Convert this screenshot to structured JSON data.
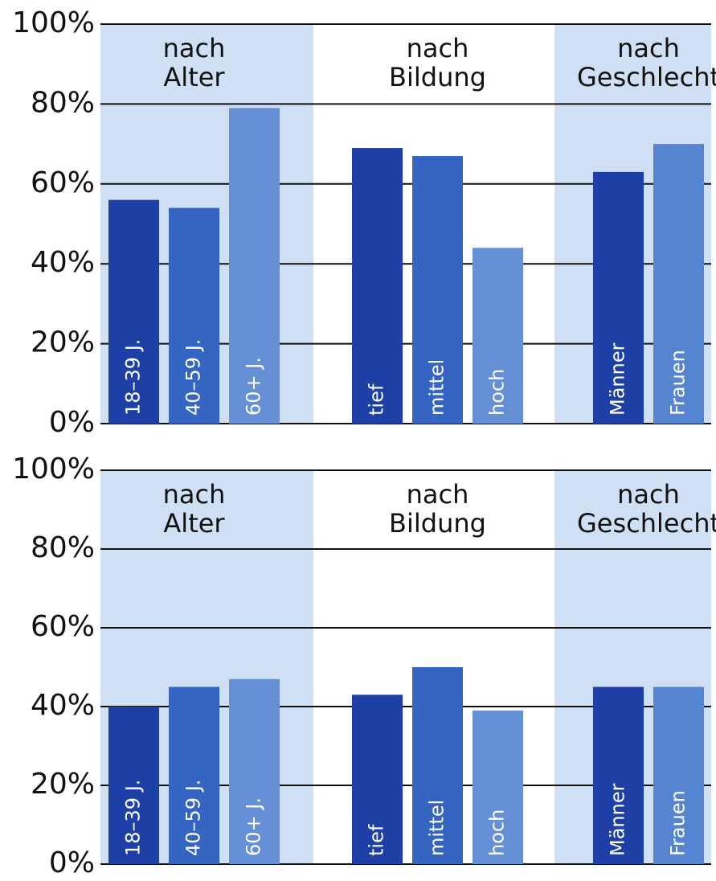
{
  "chart_data": [
    {
      "type": "bar",
      "ylim": [
        0,
        100
      ],
      "yticks": [
        {
          "value": 0,
          "label": "0%"
        },
        {
          "value": 20,
          "label": "20%"
        },
        {
          "value": 40,
          "label": "40%"
        },
        {
          "value": 60,
          "label": "60%"
        },
        {
          "value": 80,
          "label": "80%"
        },
        {
          "value": 100,
          "label": "100%"
        }
      ],
      "grid": true,
      "groups": [
        {
          "label": [
            "nach",
            "Alter"
          ],
          "categories": [
            "18–39 J.",
            "40–59 J.",
            "60+ J."
          ],
          "values": [
            56,
            54,
            79
          ],
          "colors": [
            "#1e3fa6",
            "#3465c2",
            "#6690d6"
          ]
        },
        {
          "label": [
            "nach",
            "Bildung"
          ],
          "categories": [
            "tief",
            "mittel",
            "hoch"
          ],
          "values": [
            69,
            67,
            44
          ],
          "colors": [
            "#1e3fa6",
            "#3465c2",
            "#6690d6"
          ]
        },
        {
          "label": [
            "nach",
            "Geschlecht"
          ],
          "categories": [
            "Männer",
            "Frauen"
          ],
          "values": [
            63,
            70
          ],
          "colors": [
            "#1e3fa6",
            "#5584d0"
          ]
        }
      ]
    },
    {
      "type": "bar",
      "ylim": [
        0,
        100
      ],
      "yticks": [
        {
          "value": 0,
          "label": "0%"
        },
        {
          "value": 20,
          "label": "20%"
        },
        {
          "value": 40,
          "label": "40%"
        },
        {
          "value": 60,
          "label": "60%"
        },
        {
          "value": 80,
          "label": "80%"
        },
        {
          "value": 100,
          "label": "100%"
        }
      ],
      "grid": true,
      "groups": [
        {
          "label": [
            "nach",
            "Alter"
          ],
          "categories": [
            "18–39 J.",
            "40–59 J.",
            "60+ J."
          ],
          "values": [
            40,
            45,
            47
          ],
          "colors": [
            "#1e3fa6",
            "#3465c2",
            "#6690d6"
          ]
        },
        {
          "label": [
            "nach",
            "Bildung"
          ],
          "categories": [
            "tief",
            "mittel",
            "hoch"
          ],
          "values": [
            43,
            50,
            39
          ],
          "colors": [
            "#1e3fa6",
            "#3465c2",
            "#6690d6"
          ]
        },
        {
          "label": [
            "nach",
            "Geschlecht"
          ],
          "categories": [
            "Männer",
            "Frauen"
          ],
          "values": [
            45,
            45
          ],
          "colors": [
            "#1e3fa6",
            "#5584d0"
          ]
        }
      ]
    }
  ]
}
